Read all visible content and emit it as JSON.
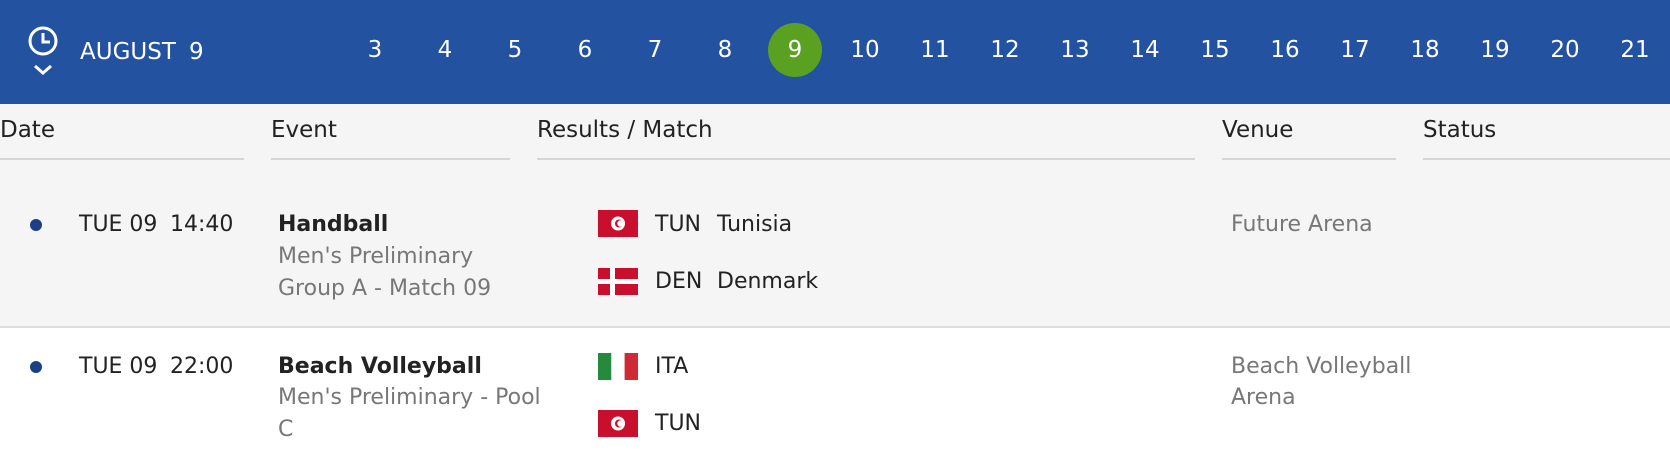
{
  "header": {
    "month": "AUGUST",
    "day": "9",
    "days": [
      "3",
      "4",
      "5",
      "6",
      "7",
      "8",
      "9",
      "10",
      "11",
      "12",
      "13",
      "14",
      "15",
      "16",
      "17",
      "18",
      "19",
      "20",
      "21"
    ]
  },
  "table": {
    "columns": [
      "Date",
      "Event",
      "Results / Match",
      "Venue",
      "Status"
    ],
    "rows": [
      {
        "day": "TUE 09",
        "time": "14:40",
        "sport": "Handball",
        "detail": [
          "Men's Preliminary",
          "Group A - Match 09"
        ],
        "teams": [
          {
            "code": "TUN",
            "name": "Tunisia"
          },
          {
            "code": "DEN",
            "name": "Denmark"
          }
        ],
        "venue": [
          "Future Arena"
        ]
      },
      {
        "day": "TUE 09",
        "time": "22:00",
        "sport": "Beach Volleyball",
        "detail": [
          "Men's Preliminary - Pool",
          "C"
        ],
        "teams": [
          {
            "code": "ITA"
          },
          {
            "code": "TUN"
          }
        ],
        "venue": [
          "Beach Volleyball",
          "Arena"
        ]
      }
    ]
  }
}
